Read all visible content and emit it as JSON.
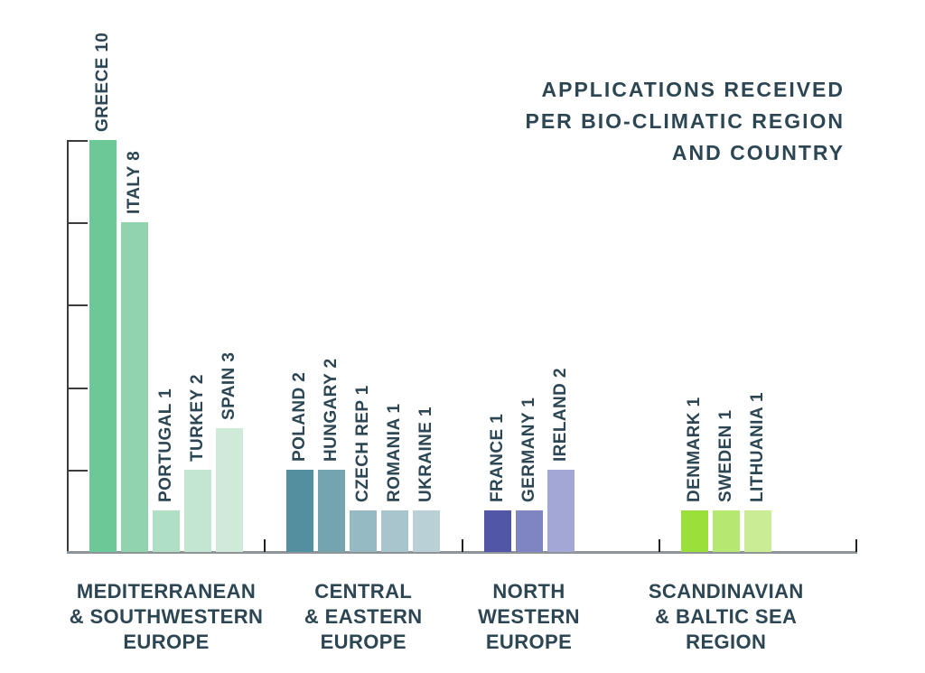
{
  "chart_data": {
    "type": "bar",
    "title": "APPLICATIONS RECEIVED PER BIO-CLIMATIC REGION AND COUNTRY",
    "title_lines": [
      "APPLICATIONS RECEIVED",
      "PER BIO-CLIMATIC REGION",
      "AND COUNTRY"
    ],
    "xlabel": "",
    "ylabel": "",
    "ylim": [
      0,
      10
    ],
    "y_ticks": [
      0,
      2,
      4,
      6,
      8,
      10
    ],
    "y_tick_labels_visible": false,
    "grid": false,
    "legend": "none",
    "text_color": "#2d4653",
    "groups": [
      {
        "region": "MEDITERRANEAN & SOUTHWESTERN EUROPE",
        "region_lines": [
          "MEDITERRANEAN",
          "& SOUTHWESTERN",
          "EUROPE"
        ],
        "bars": [
          {
            "country": "GREECE",
            "value": 10,
            "color": "#6dc897"
          },
          {
            "country": "ITALY",
            "value": 8,
            "color": "#90d3ae"
          },
          {
            "country": "PORTUGAL",
            "value": 1,
            "color": "#afdfc4"
          },
          {
            "country": "TURKEY",
            "value": 2,
            "color": "#c2e6d2"
          },
          {
            "country": "SPAIN",
            "value": 3,
            "color": "#cfead9"
          }
        ]
      },
      {
        "region": "CENTRAL & EASTERN EUROPE",
        "region_lines": [
          "CENTRAL",
          "& EASTERN",
          "EUROPE"
        ],
        "bars": [
          {
            "country": "POLAND",
            "value": 2,
            "color": "#538f9f"
          },
          {
            "country": "HUNGARY",
            "value": 2,
            "color": "#75a4b1"
          },
          {
            "country": "CZECH REP",
            "value": 1,
            "color": "#95bac4"
          },
          {
            "country": "ROMANIA",
            "value": 1,
            "color": "#a8c5cd"
          },
          {
            "country": "UKRAINE",
            "value": 1,
            "color": "#b9d0d7"
          }
        ]
      },
      {
        "region": "NORTH WESTERN EUROPE",
        "region_lines": [
          "NORTH",
          "WESTERN",
          "EUROPE"
        ],
        "bars": [
          {
            "country": "FRANCE",
            "value": 1,
            "color": "#5156a6"
          },
          {
            "country": "GERMANY",
            "value": 1,
            "color": "#7f85c1"
          },
          {
            "country": "IRELAND",
            "value": 2,
            "color": "#a3a7d5"
          }
        ]
      },
      {
        "region": "SCANDINAVIAN & BALTIC SEA REGION",
        "region_lines": [
          "SCANDINAVIAN",
          "& BALTIC SEA",
          "REGION"
        ],
        "bars": [
          {
            "country": "DENMARK",
            "value": 1,
            "color": "#9bdf3b"
          },
          {
            "country": "SWEDEN",
            "value": 1,
            "color": "#b5e771"
          },
          {
            "country": "LITHUANIA",
            "value": 1,
            "color": "#c9ec94"
          }
        ]
      }
    ]
  }
}
